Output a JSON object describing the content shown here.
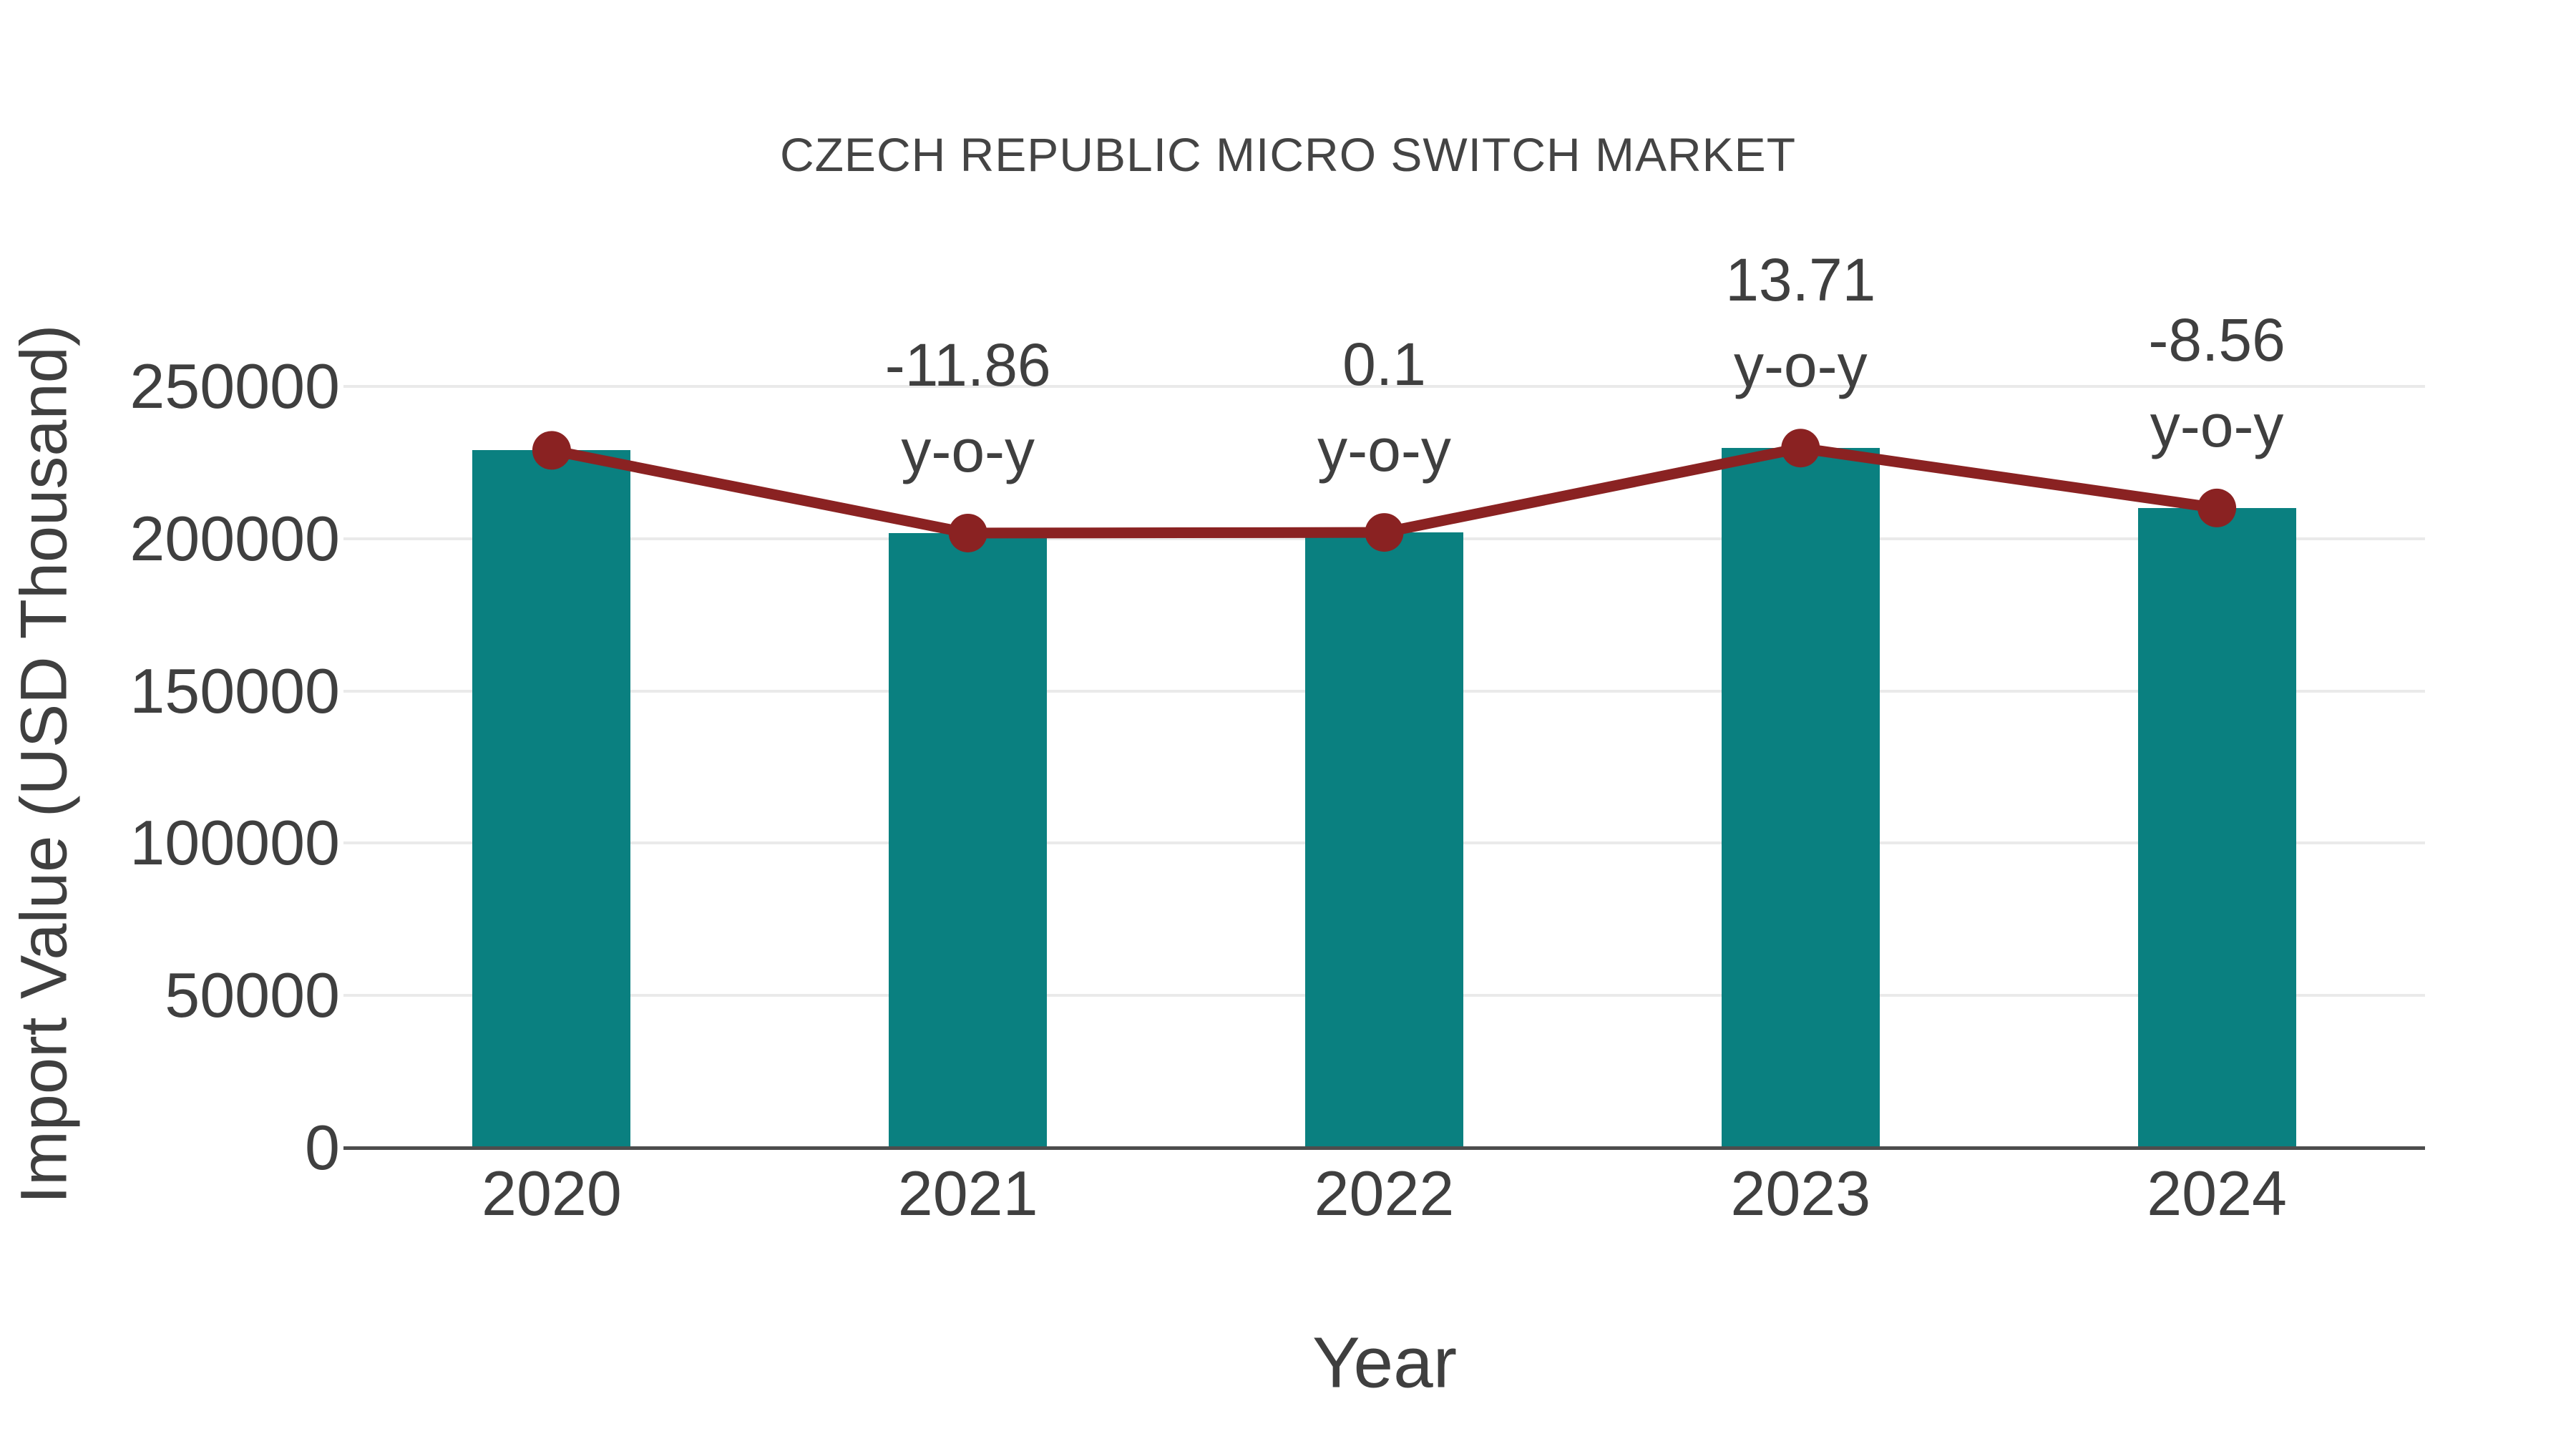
{
  "chart_data": {
    "type": "bar",
    "title": "CZECH REPUBLIC MICRO SWITCH MARKET",
    "xlabel": "Year",
    "ylabel": "Import Value (USD Thousand)",
    "categories": [
      "2020",
      "2021",
      "2022",
      "2023",
      "2024"
    ],
    "series": [
      {
        "name": "import-value-bars",
        "type": "bar",
        "color": "#0a8080",
        "values": [
          229000,
          201840,
          202040,
          229740,
          210080
        ]
      },
      {
        "name": "import-value-trend-line",
        "type": "line",
        "color": "#8a2222",
        "values": [
          229000,
          201840,
          202040,
          229740,
          210080
        ]
      }
    ],
    "annotations": [
      {
        "category": "2021",
        "value_label": "-11.86",
        "suffix_label": "y-o-y"
      },
      {
        "category": "2022",
        "value_label": "0.1",
        "suffix_label": "y-o-y"
      },
      {
        "category": "2023",
        "value_label": "13.71",
        "suffix_label": "y-o-y"
      },
      {
        "category": "2024",
        "value_label": "-8.56",
        "suffix_label": "y-o-y"
      }
    ],
    "y_ticks": [
      0,
      50000,
      100000,
      150000,
      200000,
      250000
    ],
    "y_tick_labels": [
      "0",
      "50000",
      "100000",
      "150000",
      "200000",
      "250000"
    ],
    "ylim": [
      0,
      250000
    ],
    "grid": "horizontal",
    "legend": "none"
  },
  "colors": {
    "bar": "#0a8080",
    "line": "#8a2222",
    "marker": "#8a2222",
    "title_text": "#444444",
    "label_text": "#3f3f3f",
    "gridline": "#eaeaea",
    "axis_line": "#4d4d4d",
    "background": "#ffffff"
  }
}
